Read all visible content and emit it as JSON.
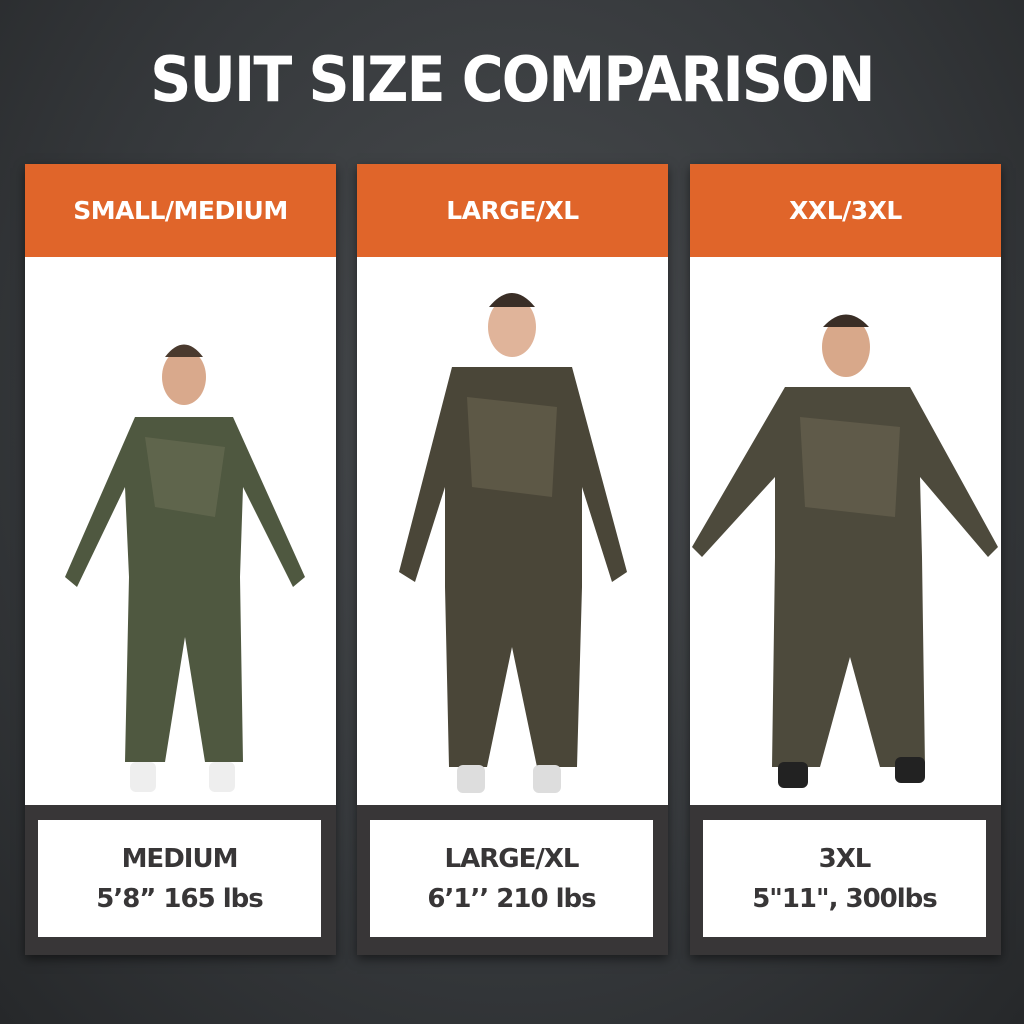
{
  "title": "SUIT SIZE COMPARISON",
  "colors": {
    "accent": "#e0652a",
    "panel": "#383637",
    "background": "#3a3d40"
  },
  "cards": [
    {
      "size_label": "SMALL/MEDIUM",
      "model_size": "MEDIUM",
      "model_stats": "5’8” 165 lbs"
    },
    {
      "size_label": "LARGE/XL",
      "model_size": "LARGE/XL",
      "model_stats": "6’1’’ 210 lbs"
    },
    {
      "size_label": "XXL/3XL",
      "model_size": "3XL",
      "model_stats": "5\"11\", 300lbs"
    }
  ]
}
